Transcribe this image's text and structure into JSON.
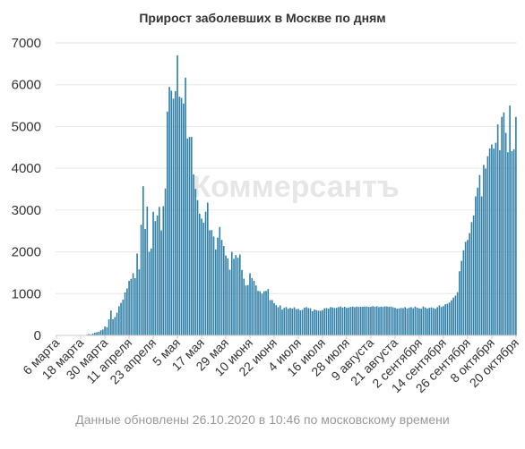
{
  "page": {
    "title": "Прирост заболевших в Москве по дням",
    "footer": "Данные обновлены 26.10.2020 в 10:46 по московскому времени",
    "watermark": "Коммерсантъ"
  },
  "colors": {
    "bar": "#2f7fa6",
    "grid": "#e6e6e6",
    "axis": "#cccccc"
  },
  "chart_data": {
    "type": "bar",
    "title": "Прирост заболевших в Москве по дням",
    "xlabel": "",
    "ylabel": "",
    "ylim": [
      0,
      7000
    ],
    "yticks": [
      0,
      1000,
      2000,
      3000,
      4000,
      5000,
      6000,
      7000
    ],
    "xticks": [
      "6 марта",
      "18 марта",
      "30 марта",
      "11 апреля",
      "23 апреля",
      "5 мая",
      "17 мая",
      "29 мая",
      "10 июня",
      "22 июня",
      "4 июля",
      "16 июля",
      "28 июля",
      "9 августа",
      "21 августа",
      "2 сентября",
      "14 сентября",
      "26 сентября",
      "8 октября",
      "20 октября"
    ],
    "first_date": "2020-03-06",
    "last_date": "2020-10-25",
    "values": [
      6,
      0,
      0,
      0,
      0,
      0,
      0,
      0,
      0,
      0,
      0,
      0,
      0,
      0,
      10,
      16,
      33,
      24,
      46,
      63,
      76,
      88,
      120,
      140,
      212,
      197,
      386,
      595,
      387,
      440,
      544,
      697,
      778,
      857,
      1030,
      1124,
      1306,
      1355,
      1489,
      1370,
      1959,
      1580,
      2649,
      3570,
      2548,
      3083,
      2001,
      2082,
      2959,
      2736,
      2871,
      3075,
      2512,
      3093,
      3516,
      5358,
      5948,
      5858,
      5667,
      5846,
      6703,
      5714,
      5685,
      5551,
      6169,
      4712,
      4748,
      4751,
      3855,
      3505,
      3238,
      2913,
      2795,
      2699,
      2963,
      3179,
      2516,
      2520,
      2367,
      2054,
      2340,
      2595,
      2286,
      2140,
      1913,
      1842,
      1572,
      1998,
      1832,
      1923,
      1858,
      1938,
      1567,
      1358,
      1195,
      1204,
      1487,
      1372,
      1307,
      1195,
      1066,
      1057,
      1000,
      1057,
      1065,
      1108,
      845,
      846,
      772,
      725,
      676,
      718,
      619,
      659,
      678,
      638,
      659,
      642,
      673,
      628,
      635,
      598,
      614,
      664,
      677,
      652,
      648,
      579,
      617,
      604,
      593,
      588,
      606,
      649,
      656,
      640,
      678,
      669,
      657,
      660,
      678,
      691,
      666,
      685,
      660,
      667,
      682,
      690,
      675,
      689,
      681,
      684,
      687,
      692,
      690,
      681,
      686,
      699,
      687,
      698,
      678,
      688,
      681,
      696,
      691,
      684,
      690,
      673,
      660,
      639,
      646,
      657,
      652,
      676,
      644,
      662,
      676,
      651,
      690,
      664,
      647,
      641,
      691,
      668,
      644,
      660,
      670,
      654,
      636,
      675,
      719,
      680,
      700,
      746,
      760,
      787,
      842,
      906,
      954,
      1035,
      1535,
      1785,
      2038,
      2239,
      2285,
      2448,
      2712,
      2871,
      3327,
      3537,
      3839,
      3328,
      4082,
      3993,
      4290,
      4475,
      4570,
      4470,
      4611,
      5050,
      4430,
      5230,
      5337,
      4848,
      4383,
      5500,
      4412,
      4453,
      5228
    ]
  }
}
